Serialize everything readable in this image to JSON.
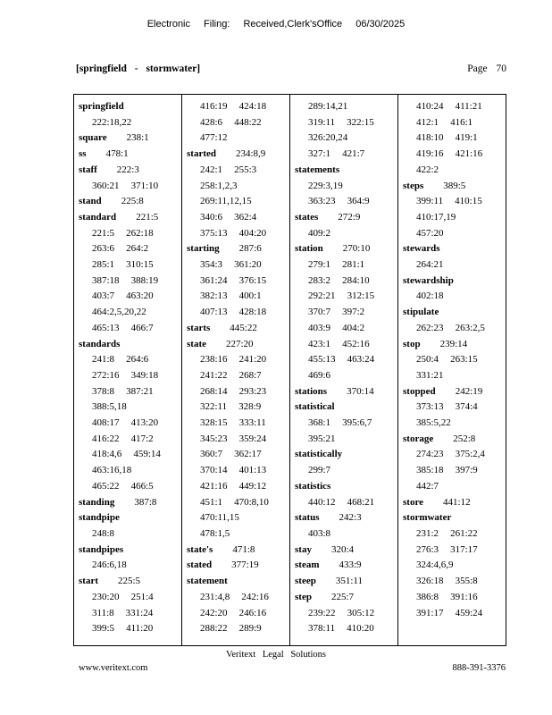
{
  "page": {
    "efiling_notice": "Electronic Filing: Received,Clerk'sOffice 06/30/2025",
    "index_range": "[springfield - stormwater]",
    "page_label": "Page 70"
  },
  "footer": {
    "company": "Veritext Legal Solutions",
    "website": "www.veritext.com",
    "phone": "888-391-3376"
  },
  "table": {
    "columns": [
      {
        "lines": [
          {
            "word": "springfield",
            "refs": []
          },
          {
            "refs": [
              "222:18,22"
            ]
          },
          {
            "word": "square",
            "refs": [
              "238:1"
            ]
          },
          {
            "word": "ss",
            "refs": [
              "478:1"
            ]
          },
          {
            "word": "staff",
            "refs": [
              "222:3"
            ]
          },
          {
            "refs": [
              "360:21",
              "371:10"
            ]
          },
          {
            "word": "stand",
            "refs": [
              "225:8"
            ]
          },
          {
            "word": "standard",
            "refs": [
              "221:5"
            ]
          },
          {
            "refs": [
              "221:5",
              "262:18"
            ]
          },
          {
            "refs": [
              "263:6",
              "264:2"
            ]
          },
          {
            "refs": [
              "285:1",
              "310:15"
            ]
          },
          {
            "refs": [
              "387:18",
              "388:19"
            ]
          },
          {
            "refs": [
              "403:7",
              "463:20"
            ]
          },
          {
            "refs": [
              "464:2,5,20,22"
            ]
          },
          {
            "refs": [
              "465:13",
              "466:7"
            ]
          },
          {
            "word": "standards",
            "refs": []
          },
          {
            "refs": [
              "241:8",
              "264:6"
            ]
          },
          {
            "refs": [
              "272:16",
              "349:18"
            ]
          },
          {
            "refs": [
              "378:8",
              "387:21"
            ]
          },
          {
            "refs": [
              "388:5,18"
            ]
          },
          {
            "refs": [
              "408:17",
              "413:20"
            ]
          },
          {
            "refs": [
              "416:22",
              "417:2"
            ]
          },
          {
            "refs": [
              "418:4,6",
              "459:14"
            ]
          },
          {
            "refs": [
              "463:16,18"
            ]
          },
          {
            "refs": [
              "465:22",
              "466:5"
            ]
          },
          {
            "word": "standing",
            "refs": [
              "387:8"
            ]
          },
          {
            "word": "standpipe",
            "refs": []
          },
          {
            "refs": [
              "248:8"
            ]
          },
          {
            "word": "standpipes",
            "refs": []
          },
          {
            "refs": [
              "246:6,18"
            ]
          },
          {
            "word": "start",
            "refs": [
              "225:5"
            ]
          },
          {
            "refs": [
              "230:20",
              "251:4"
            ]
          },
          {
            "refs": [
              "311:8",
              "331:24"
            ]
          },
          {
            "refs": [
              "399:5",
              "411:20"
            ]
          }
        ]
      },
      {
        "lines": [
          {
            "refs": [
              "416:19",
              "424:18"
            ]
          },
          {
            "refs": [
              "428:6",
              "448:22"
            ]
          },
          {
            "refs": [
              "477:12"
            ]
          },
          {
            "word": "started",
            "refs": [
              "234:8,9"
            ]
          },
          {
            "refs": [
              "242:1",
              "255:3"
            ]
          },
          {
            "refs": [
              "258:1,2,3"
            ]
          },
          {
            "refs": [
              "269:11,12,15"
            ]
          },
          {
            "refs": [
              "340:6",
              "362:4"
            ]
          },
          {
            "refs": [
              "375:13",
              "404:20"
            ]
          },
          {
            "word": "starting",
            "refs": [
              "287:6"
            ]
          },
          {
            "refs": [
              "354:3",
              "361:20"
            ]
          },
          {
            "refs": [
              "361:24",
              "376:15"
            ]
          },
          {
            "refs": [
              "382:13",
              "400:1"
            ]
          },
          {
            "refs": [
              "407:13",
              "428:18"
            ]
          },
          {
            "word": "starts",
            "refs": [
              "445:22"
            ]
          },
          {
            "word": "state",
            "refs": [
              "227:20"
            ]
          },
          {
            "refs": [
              "238:16",
              "241:20"
            ]
          },
          {
            "refs": [
              "241:22",
              "268:7"
            ]
          },
          {
            "refs": [
              "268:14",
              "293:23"
            ]
          },
          {
            "refs": [
              "322:11",
              "328:9"
            ]
          },
          {
            "refs": [
              "328:15",
              "333:11"
            ]
          },
          {
            "refs": [
              "345:23",
              "359:24"
            ]
          },
          {
            "refs": [
              "360:7",
              "362:17"
            ]
          },
          {
            "refs": [
              "370:14",
              "401:13"
            ]
          },
          {
            "refs": [
              "421:16",
              "449:12"
            ]
          },
          {
            "refs": [
              "451:1",
              "470:8,10"
            ]
          },
          {
            "refs": [
              "470:11,15"
            ]
          },
          {
            "refs": [
              "478:1,5"
            ]
          },
          {
            "word": "state's",
            "refs": [
              "471:8"
            ]
          },
          {
            "word": "stated",
            "refs": [
              "377:19"
            ]
          },
          {
            "word": "statement",
            "refs": []
          },
          {
            "refs": [
              "231:4,8",
              "242:16"
            ]
          },
          {
            "refs": [
              "242:20",
              "246:16"
            ]
          },
          {
            "refs": [
              "288:22",
              "289:9"
            ]
          }
        ]
      },
      {
        "lines": [
          {
            "refs": [
              "289:14,21"
            ]
          },
          {
            "refs": [
              "319:11",
              "322:15"
            ]
          },
          {
            "refs": [
              "326:20,24"
            ]
          },
          {
            "refs": [
              "327:1",
              "421:7"
            ]
          },
          {
            "word": "statements",
            "refs": []
          },
          {
            "refs": [
              "229:3,19"
            ]
          },
          {
            "refs": [
              "363:23",
              "364:9"
            ]
          },
          {
            "word": "states",
            "refs": [
              "272:9"
            ]
          },
          {
            "refs": [
              "409:2"
            ]
          },
          {
            "word": "station",
            "refs": [
              "270:10"
            ]
          },
          {
            "refs": [
              "279:1",
              "281:1"
            ]
          },
          {
            "refs": [
              "283:2",
              "284:10"
            ]
          },
          {
            "refs": [
              "292:21",
              "312:15"
            ]
          },
          {
            "refs": [
              "370:7",
              "397:2"
            ]
          },
          {
            "refs": [
              "403:9",
              "404:2"
            ]
          },
          {
            "refs": [
              "423:1",
              "452:16"
            ]
          },
          {
            "refs": [
              "455:13",
              "463:24"
            ]
          },
          {
            "refs": [
              "469:6"
            ]
          },
          {
            "word": "stations",
            "refs": [
              "370:14"
            ]
          },
          {
            "word": "statistical",
            "refs": []
          },
          {
            "refs": [
              "368:1",
              "395:6,7"
            ]
          },
          {
            "refs": [
              "395:21"
            ]
          },
          {
            "word": "statistically",
            "refs": []
          },
          {
            "refs": [
              "299:7"
            ]
          },
          {
            "word": "statistics",
            "refs": []
          },
          {
            "refs": [
              "440:12",
              "468:21"
            ]
          },
          {
            "word": "status",
            "refs": [
              "242:3"
            ]
          },
          {
            "refs": [
              "403:8"
            ]
          },
          {
            "word": "stay",
            "refs": [
              "320:4"
            ]
          },
          {
            "word": "steam",
            "refs": [
              "433:9"
            ]
          },
          {
            "word": "steep",
            "refs": [
              "351:11"
            ]
          },
          {
            "word": "step",
            "refs": [
              "225:7"
            ]
          },
          {
            "refs": [
              "239:22",
              "305:12"
            ]
          },
          {
            "refs": [
              "378:11",
              "410:20"
            ]
          }
        ]
      },
      {
        "lines": [
          {
            "refs": [
              "410:24",
              "411:21"
            ]
          },
          {
            "refs": [
              "412:1",
              "416:1"
            ]
          },
          {
            "refs": [
              "418:10",
              "419:1"
            ]
          },
          {
            "refs": [
              "419:16",
              "421:16"
            ]
          },
          {
            "refs": [
              "422:2"
            ]
          },
          {
            "word": "steps",
            "refs": [
              "389:5"
            ]
          },
          {
            "refs": [
              "399:11",
              "410:15"
            ]
          },
          {
            "refs": [
              "410:17,19"
            ]
          },
          {
            "refs": [
              "457:20"
            ]
          },
          {
            "word": "stewards",
            "refs": []
          },
          {
            "refs": [
              "264:21"
            ]
          },
          {
            "word": "stewardship",
            "refs": []
          },
          {
            "refs": [
              "402:18"
            ]
          },
          {
            "word": "stipulate",
            "refs": []
          },
          {
            "refs": [
              "262:23",
              "263:2,5"
            ]
          },
          {
            "word": "stop",
            "refs": [
              "239:14"
            ]
          },
          {
            "refs": [
              "250:4",
              "263:15"
            ]
          },
          {
            "refs": [
              "331:21"
            ]
          },
          {
            "word": "stopped",
            "refs": [
              "242:19"
            ]
          },
          {
            "refs": [
              "373:13",
              "374:4"
            ]
          },
          {
            "refs": [
              "385:5,22"
            ]
          },
          {
            "word": "storage",
            "refs": [
              "252:8"
            ]
          },
          {
            "refs": [
              "274:23",
              "375:2,4"
            ]
          },
          {
            "refs": [
              "385:18",
              "397:9"
            ]
          },
          {
            "refs": [
              "442:7"
            ]
          },
          {
            "word": "store",
            "refs": [
              "441:12"
            ]
          },
          {
            "word": "stormwater",
            "refs": []
          },
          {
            "refs": [
              "231:2",
              "261:22"
            ]
          },
          {
            "refs": [
              "276:3",
              "317:17"
            ]
          },
          {
            "refs": [
              "324:4,6,9"
            ]
          },
          {
            "refs": [
              "326:18",
              "355:8"
            ]
          },
          {
            "refs": [
              "386:8",
              "391:16"
            ]
          },
          {
            "refs": [
              "391:17",
              "459:24"
            ]
          }
        ]
      }
    ]
  }
}
